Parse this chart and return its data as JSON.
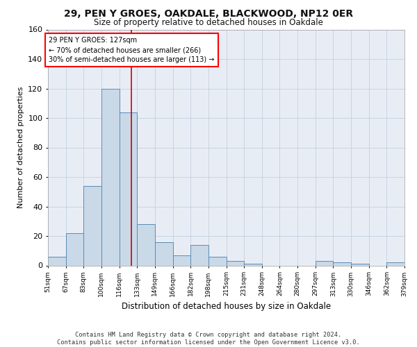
{
  "title1": "29, PEN Y GROES, OAKDALE, BLACKWOOD, NP12 0ER",
  "title2": "Size of property relative to detached houses in Oakdale",
  "xlabel": "Distribution of detached houses by size in Oakdale",
  "ylabel": "Number of detached properties",
  "bar_values": [
    6,
    22,
    54,
    120,
    104,
    28,
    16,
    7,
    14,
    6,
    3,
    1,
    0,
    0,
    0,
    3,
    2,
    1,
    0,
    2
  ],
  "bin_labels": [
    "51sqm",
    "67sqm",
    "83sqm",
    "100sqm",
    "116sqm",
    "133sqm",
    "149sqm",
    "166sqm",
    "182sqm",
    "198sqm",
    "215sqm",
    "231sqm",
    "248sqm",
    "264sqm",
    "280sqm",
    "297sqm",
    "313sqm",
    "330sqm",
    "346sqm",
    "362sqm",
    "379sqm"
  ],
  "bar_color": "#c9d9e8",
  "bar_edge_color": "#5a8ab5",
  "grid_color": "#c8d4e3",
  "background_color": "#e8edf5",
  "vline_color": "#cc0000",
  "vline_x": 4.69,
  "annotation_text1": "29 PEN Y GROES: 127sqm",
  "annotation_text2": "← 70% of detached houses are smaller (266)",
  "annotation_text3": "30% of semi-detached houses are larger (113) →",
  "ylim": [
    0,
    160
  ],
  "yticks": [
    0,
    20,
    40,
    60,
    80,
    100,
    120,
    140,
    160
  ],
  "footer": "Contains HM Land Registry data © Crown copyright and database right 2024.\nContains public sector information licensed under the Open Government Licence v3.0."
}
